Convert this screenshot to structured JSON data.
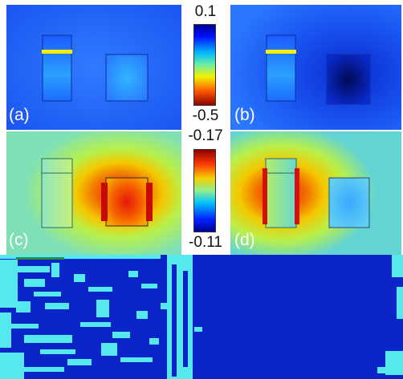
{
  "panels": [
    {
      "id": "a",
      "label": "(a)"
    },
    {
      "id": "b",
      "label": "(b)"
    },
    {
      "id": "c",
      "label": "(c)"
    },
    {
      "id": "d",
      "label": "(d)"
    }
  ],
  "colorbars": [
    {
      "id": "top",
      "max_label": "0.1",
      "min_label": "-0.5",
      "scale": "jet"
    },
    {
      "id": "bottom",
      "max_label": "-0.17",
      "min_label": "-0.11",
      "scale": "jet"
    }
  ],
  "colors": {
    "field_blue": "#1a5cff",
    "deep_blue": "#001a6e",
    "cyan": "#3fd7f0",
    "yellow": "#f6f000",
    "red": "#e8140a",
    "artifact_blue": "#0b24c8",
    "artifact_cyan": "#55e8ee"
  }
}
